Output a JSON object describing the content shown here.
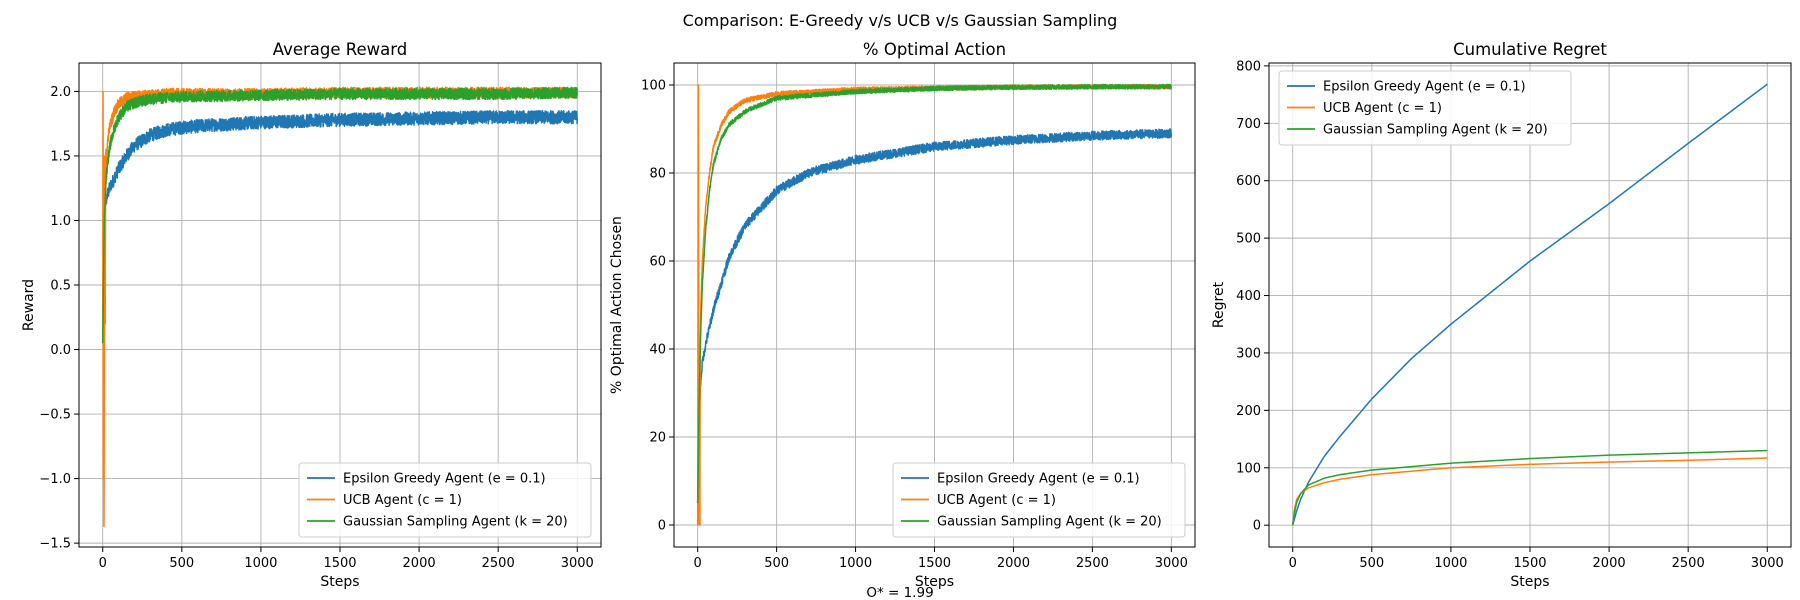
{
  "figure": {
    "title": "Comparison: E-Greedy v/s UCB v/s Gaussian Sampling",
    "footnote": "O* = 1.99"
  },
  "colors": {
    "eps": "#1f77b4",
    "ucb": "#ff7f0e",
    "gauss": "#2ca02c",
    "grid": "#b0b0b0"
  },
  "chart_data": [
    {
      "type": "line",
      "title": "Average Reward",
      "xlabel": "Steps",
      "ylabel": "Reward",
      "xlim": [
        -150,
        3150
      ],
      "ylim": [
        -1.53,
        2.22
      ],
      "xticks": [
        0,
        500,
        1000,
        1500,
        2000,
        2500,
        3000
      ],
      "yticks": [
        -1.5,
        -1.0,
        -0.5,
        0.0,
        0.5,
        1.0,
        1.5,
        2.0
      ],
      "ytick_labels": [
        "−1.5",
        "−1.0",
        "−0.5",
        "0.0",
        "0.5",
        "1.0",
        "1.5",
        "2.0"
      ],
      "grid": true,
      "legend_position": "lower-right",
      "series": [
        {
          "name": "Epsilon Greedy Agent (e = 0.1)",
          "color_key": "eps",
          "noise": 0.03,
          "x": [
            0,
            5,
            10,
            20,
            30,
            50,
            75,
            100,
            150,
            200,
            300,
            400,
            500,
            700,
            1000,
            1500,
            2000,
            2500,
            3000
          ],
          "y": [
            0.1,
            0.9,
            1.1,
            1.15,
            1.2,
            1.27,
            1.33,
            1.4,
            1.5,
            1.58,
            1.66,
            1.7,
            1.72,
            1.74,
            1.76,
            1.78,
            1.79,
            1.8,
            1.8
          ]
        },
        {
          "name": "UCB Agent (c = 1)",
          "color_key": "ucb",
          "noise": 0.025,
          "x": [
            0,
            2,
            4,
            6,
            8,
            10,
            12,
            14,
            16,
            18,
            20,
            25,
            30,
            40,
            50,
            75,
            100,
            150,
            200,
            300,
            400,
            500,
            1000,
            1500,
            2000,
            2500,
            3000
          ],
          "y": [
            0.1,
            2.0,
            -1.0,
            1.5,
            -1.37,
            -0.4,
            0.5,
            1.5,
            0.2,
            1.2,
            1.55,
            1.4,
            1.6,
            1.7,
            1.75,
            1.85,
            1.9,
            1.95,
            1.96,
            1.97,
            1.98,
            1.98,
            1.98,
            1.99,
            1.99,
            1.99,
            1.99
          ]
        },
        {
          "name": "Gaussian Sampling Agent (k = 20)",
          "color_key": "gauss",
          "noise": 0.025,
          "x": [
            0,
            5,
            10,
            20,
            30,
            50,
            75,
            100,
            150,
            200,
            300,
            400,
            500,
            1000,
            1500,
            2000,
            2500,
            3000
          ],
          "y": [
            0.05,
            0.5,
            1.0,
            1.3,
            1.45,
            1.6,
            1.72,
            1.8,
            1.88,
            1.91,
            1.94,
            1.95,
            1.96,
            1.97,
            1.98,
            1.98,
            1.98,
            1.99
          ]
        }
      ]
    },
    {
      "type": "line",
      "title": "% Optimal Action",
      "xlabel": "Steps",
      "ylabel": "% Optimal Action Chosen",
      "xlim": [
        -150,
        3150
      ],
      "ylim": [
        -5,
        105
      ],
      "xticks": [
        0,
        500,
        1000,
        1500,
        2000,
        2500,
        3000
      ],
      "yticks": [
        0,
        20,
        40,
        60,
        80,
        100
      ],
      "ytick_labels": [
        "0",
        "20",
        "40",
        "60",
        "80",
        "100"
      ],
      "grid": true,
      "legend_position": "lower-right",
      "series": [
        {
          "name": "Epsilon Greedy Agent (e = 0.1)",
          "color_key": "eps",
          "noise": 0.6,
          "x": [
            0,
            10,
            20,
            30,
            50,
            100,
            150,
            200,
            300,
            400,
            500,
            700,
            1000,
            1500,
            2000,
            2500,
            3000
          ],
          "y": [
            5,
            25,
            33,
            37,
            41,
            49,
            55,
            61,
            68,
            72,
            76,
            80,
            83,
            86,
            87.5,
            88.5,
            89
          ]
        },
        {
          "name": "UCB Agent (c = 1)",
          "color_key": "ucb",
          "noise": 0.3,
          "x": [
            0,
            5,
            8,
            10,
            12,
            14,
            16,
            20,
            30,
            50,
            75,
            100,
            150,
            200,
            300,
            500,
            1000,
            1500,
            2000,
            2500,
            3000
          ],
          "y": [
            0,
            100,
            0,
            0,
            10,
            0,
            40,
            50,
            60,
            72,
            80,
            86,
            91,
            94,
            96.5,
            98,
            99,
            99.3,
            99.5,
            99.6,
            99.6
          ]
        },
        {
          "name": "Gaussian Sampling Agent (k = 20)",
          "color_key": "gauss",
          "noise": 0.3,
          "x": [
            0,
            10,
            20,
            30,
            50,
            75,
            100,
            150,
            200,
            300,
            500,
            1000,
            1500,
            2000,
            2500,
            3000
          ],
          "y": [
            5,
            30,
            45,
            55,
            67,
            76,
            82,
            88,
            91,
            94,
            97,
            98.5,
            99.2,
            99.5,
            99.6,
            99.6
          ]
        }
      ]
    },
    {
      "type": "line",
      "title": "Cumulative Regret",
      "xlabel": "Steps",
      "ylabel": "Regret",
      "xlim": [
        -150,
        3150
      ],
      "ylim": [
        -38,
        805
      ],
      "xticks": [
        0,
        500,
        1000,
        1500,
        2000,
        2500,
        3000
      ],
      "yticks": [
        0,
        100,
        200,
        300,
        400,
        500,
        600,
        700,
        800
      ],
      "ytick_labels": [
        "0",
        "100",
        "200",
        "300",
        "400",
        "500",
        "600",
        "700",
        "800"
      ],
      "grid": true,
      "legend_position": "top-left",
      "series": [
        {
          "name": "Epsilon Greedy Agent (e = 0.1)",
          "color_key": "eps",
          "noise": 0,
          "x": [
            0,
            25,
            50,
            100,
            200,
            300,
            500,
            750,
            1000,
            1500,
            2000,
            2500,
            3000
          ],
          "y": [
            0,
            25,
            45,
            75,
            120,
            155,
            220,
            290,
            350,
            460,
            560,
            665,
            768
          ]
        },
        {
          "name": "UCB Agent (c = 1)",
          "color_key": "ucb",
          "noise": 0,
          "x": [
            0,
            10,
            25,
            50,
            100,
            200,
            300,
            500,
            1000,
            1500,
            2000,
            2500,
            3000
          ],
          "y": [
            0,
            25,
            45,
            55,
            65,
            74,
            80,
            88,
            100,
            106,
            110,
            113,
            117
          ]
        },
        {
          "name": "Gaussian Sampling Agent (k = 20)",
          "color_key": "gauss",
          "noise": 0,
          "x": [
            0,
            10,
            25,
            50,
            100,
            200,
            300,
            500,
            1000,
            1500,
            2000,
            2500,
            3000
          ],
          "y": [
            0,
            20,
            40,
            55,
            70,
            82,
            88,
            96,
            108,
            116,
            122,
            126,
            130
          ]
        }
      ]
    }
  ]
}
